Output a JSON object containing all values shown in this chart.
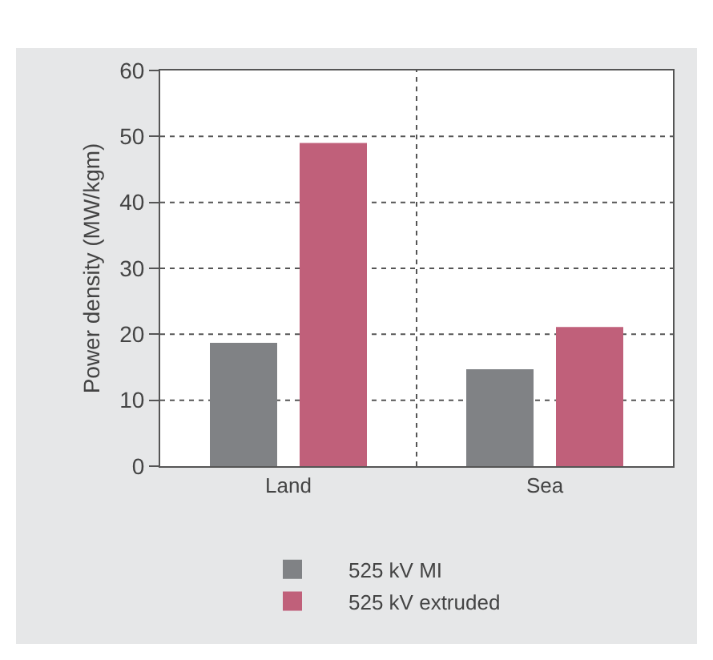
{
  "chart_data": {
    "type": "bar",
    "ylabel": "Power density (MW/kgm)",
    "categories": [
      "Land",
      "Sea"
    ],
    "series": [
      {
        "name": "525 kV MI",
        "color": "#808285",
        "values": [
          18.7,
          14.7
        ]
      },
      {
        "name": "525 kV extruded",
        "color": "#c0607a",
        "values": [
          49.0,
          21.1
        ]
      }
    ],
    "ylim": [
      0,
      60
    ],
    "yticks": [
      0,
      10,
      20,
      30,
      40,
      50,
      60
    ],
    "grid": true,
    "legend": "bottom"
  }
}
